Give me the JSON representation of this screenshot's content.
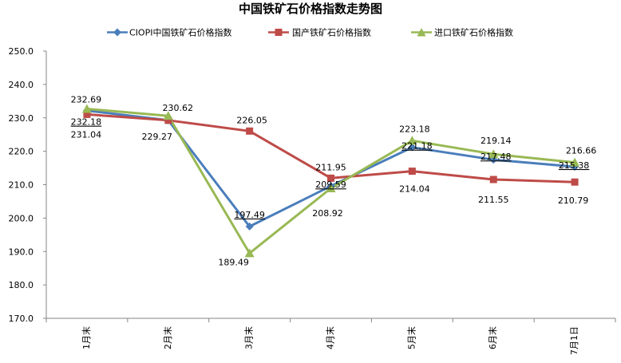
{
  "chart_data": {
    "type": "line",
    "title": "中国铁矿石价格指数走势图",
    "categories": [
      "1月末",
      "2月末",
      "3月末",
      "4月末",
      "5月末",
      "6月末",
      "7月1日"
    ],
    "ylim": [
      170.0,
      250.0
    ],
    "yticks": [
      "170.0",
      "180.0",
      "190.0",
      "200.0",
      "210.0",
      "220.0",
      "230.0",
      "240.0",
      "250.0"
    ],
    "grid": false,
    "legend_position": "top",
    "series": [
      {
        "name": "CIOPI中国铁矿石价格指数",
        "color": "#4A7EBB",
        "marker": "diamond",
        "values": [
          232.18,
          229.27,
          197.49,
          209.59,
          221.18,
          217.48,
          215.38
        ]
      },
      {
        "name": "国产铁矿石价格指数",
        "color": "#BE4B48",
        "marker": "square",
        "values": [
          231.04,
          229.27,
          226.05,
          211.95,
          214.04,
          211.55,
          210.79
        ]
      },
      {
        "name": "进口铁矿石价格指数",
        "color": "#98B954",
        "marker": "triangle",
        "values": [
          232.69,
          230.62,
          189.49,
          208.92,
          223.18,
          219.14,
          216.66
        ]
      }
    ],
    "data_labels": [
      {
        "text": "232.69",
        "series": 2,
        "index": 0
      },
      {
        "text": "232.18",
        "series": 0,
        "index": 0,
        "underline": true
      },
      {
        "text": "231.04",
        "series": 1,
        "index": 0
      },
      {
        "text": "230.62",
        "series": 2,
        "index": 1
      },
      {
        "text": "229.27",
        "series": 1,
        "index": 1
      },
      {
        "text": "226.05",
        "series": 1,
        "index": 2
      },
      {
        "text": "197.49",
        "series": 0,
        "index": 2,
        "underline": true
      },
      {
        "text": "189.49",
        "series": 2,
        "index": 2
      },
      {
        "text": "211.95",
        "series": 1,
        "index": 3
      },
      {
        "text": "209.59",
        "series": 0,
        "index": 3,
        "underline": true
      },
      {
        "text": "208.92",
        "series": 2,
        "index": 3
      },
      {
        "text": "223.18",
        "series": 2,
        "index": 4
      },
      {
        "text": "221.18",
        "series": 0,
        "index": 4,
        "underline": true
      },
      {
        "text": "214.04",
        "series": 1,
        "index": 4
      },
      {
        "text": "219.14",
        "series": 2,
        "index": 5
      },
      {
        "text": "217.48",
        "series": 0,
        "index": 5,
        "underline": true
      },
      {
        "text": "211.55",
        "series": 1,
        "index": 5
      },
      {
        "text": "216.66",
        "series": 2,
        "index": 6
      },
      {
        "text": "215.38",
        "series": 0,
        "index": 6,
        "underline": true
      },
      {
        "text": "210.79",
        "series": 1,
        "index": 6
      }
    ]
  }
}
